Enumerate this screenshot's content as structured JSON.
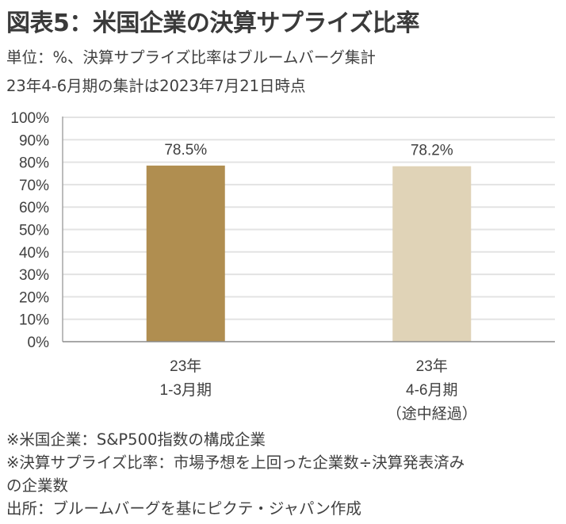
{
  "header": {
    "title": "図表5：米国企業の決算サプライズ比率",
    "subtitle_1": "単位：%、決算サプライズ比率はブルームバーグ集計",
    "subtitle_2": "23年4-6月期の集計は2023年7月21日時点"
  },
  "chart_data": {
    "type": "bar",
    "title": "",
    "xlabel": "",
    "ylabel": "",
    "ylim": [
      0,
      100
    ],
    "yticks": [
      "0%",
      "10%",
      "20%",
      "30%",
      "40%",
      "50%",
      "60%",
      "70%",
      "80%",
      "90%",
      "100%"
    ],
    "grid": true,
    "categories": [
      [
        "23年",
        "1-3月期"
      ],
      [
        "23年",
        "4-6月期",
        "（途中経過）"
      ]
    ],
    "values": [
      78.5,
      78.2
    ],
    "data_labels": [
      "78.5%",
      "78.2%"
    ],
    "colors": [
      "#b08e50",
      "#e0d3b7"
    ]
  },
  "footnotes": [
    "※米国企業：S&P500指数の構成企業",
    "※決算サプライズ比率：市場予想を上回った企業数÷決算発表済み",
    "の企業数",
    "出所：ブルームバーグを基にピクテ・ジャパン作成"
  ]
}
